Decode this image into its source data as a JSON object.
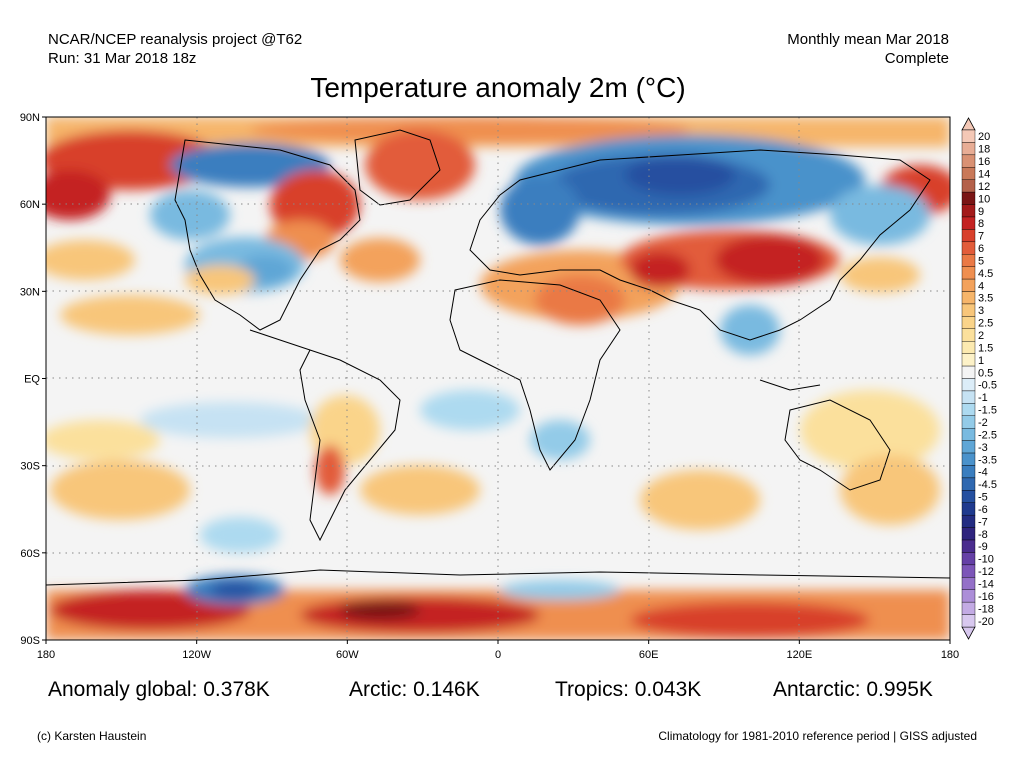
{
  "header": {
    "line1_left": "NCAR/NCEP reanalysis project @T62",
    "line2_left": "Run: 31 Mar 2018 18z",
    "line1_right": "Monthly mean Mar 2018",
    "line2_right": "Complete"
  },
  "title": "Temperature anomaly 2m (°C)",
  "axes": {
    "lat_labels": [
      "90N",
      "60N",
      "30N",
      "EQ",
      "30S",
      "60S",
      "90S"
    ],
    "lon_labels": [
      "180",
      "120W",
      "60W",
      "0",
      "60E",
      "120E",
      "180"
    ]
  },
  "colorbar": {
    "labels": [
      "20",
      "18",
      "16",
      "14",
      "12",
      "10",
      "9",
      "8",
      "7",
      "6",
      "5",
      "4.5",
      "4",
      "3.5",
      "3",
      "2.5",
      "2",
      "1.5",
      "1",
      "0.5",
      "-0.5",
      "-1",
      "-1.5",
      "-2",
      "-2.5",
      "-3",
      "-3.5",
      "-4",
      "-4.5",
      "-5",
      "-6",
      "-7",
      "-8",
      "-9",
      "-10",
      "-12",
      "-14",
      "-16",
      "-18",
      "-20"
    ],
    "colors": [
      "#f4c8b6",
      "#e8ad95",
      "#d99173",
      "#c97959",
      "#b4614a",
      "#7a1515",
      "#a31a1a",
      "#c42222",
      "#d8402c",
      "#e25c3a",
      "#ea7945",
      "#ef8f50",
      "#f3a25c",
      "#f6b56a",
      "#f8c67a",
      "#fad48a",
      "#fbe09c",
      "#fceab0",
      "#fdf2c8",
      "#f4f4f4",
      "#dcedf8",
      "#c6e2f3",
      "#addaf0",
      "#93cbe8",
      "#79bae0",
      "#5fa6d6",
      "#4a92cb",
      "#3a7ebf",
      "#2f68b0",
      "#2550a0",
      "#1f3a8e",
      "#232c82",
      "#2f247e",
      "#4a2c8e",
      "#6540a6",
      "#7c55b8",
      "#9470c8",
      "#ac8ed8",
      "#c3abe4",
      "#d8c8ef"
    ]
  },
  "stats": {
    "global": "Anomaly global: 0.378K",
    "arctic": "Arctic: 0.146K",
    "tropics": "Tropics: 0.043K",
    "antarctic": "Antarctic: 0.995K"
  },
  "footer": {
    "copyright": "(c) Karsten Haustein",
    "climatology": "Climatology for 1981-2010 reference period | GISS adjusted"
  }
}
